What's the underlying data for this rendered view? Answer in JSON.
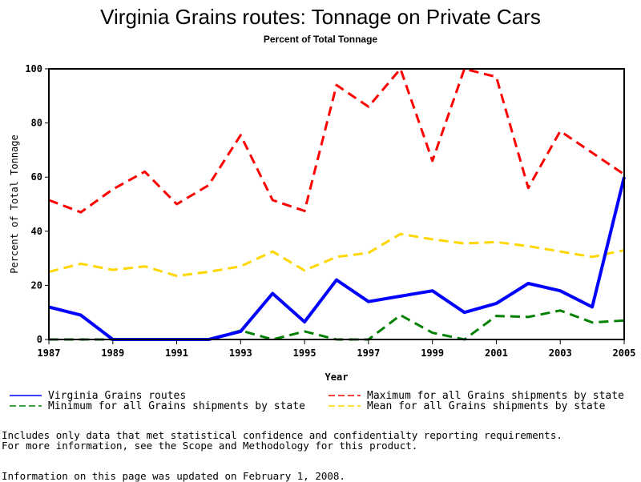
{
  "chart_data": {
    "type": "line",
    "title": "Virginia Grains routes: Tonnage on Private Cars",
    "subtitle": "Percent of Total Tonnage",
    "xlabel": "Year",
    "ylabel": "Percent of Total Tonnage",
    "xlim": [
      1987,
      2005
    ],
    "ylim": [
      0,
      100
    ],
    "x_ticks": [
      "1987",
      "1989",
      "1991",
      "1993",
      "1995",
      "1997",
      "1999",
      "2001",
      "2003",
      "2005"
    ],
    "y_ticks": [
      "0",
      "20",
      "40",
      "60",
      "80",
      "100"
    ],
    "grid": false,
    "legend_position": "bottom",
    "x": [
      1987,
      1988,
      1989,
      1990,
      1991,
      1992,
      1993,
      1994,
      1995,
      1996,
      1997,
      1998,
      1999,
      2000,
      2001,
      2002,
      2003,
      2004,
      2005
    ],
    "series": [
      {
        "name": "Virginia Grains routes",
        "color": "#0000ff",
        "style": "solid",
        "values": [
          12,
          9,
          0,
          0,
          0,
          0,
          3,
          17,
          6.5,
          22,
          14,
          16,
          18,
          10,
          13.3,
          20.7,
          18,
          12,
          60
        ]
      },
      {
        "name": "Maximum for all Grains shipments by state",
        "color": "#ff0000",
        "style": "dashed",
        "values": [
          51.5,
          47,
          55.5,
          62,
          50,
          57,
          75.5,
          51.5,
          47.5,
          94,
          86,
          100,
          66,
          100,
          97,
          56,
          77,
          69,
          61
        ]
      },
      {
        "name": "Minimum for all Grains shipments by state",
        "color": "#008000",
        "style": "dashed",
        "values": [
          0,
          0,
          0,
          0,
          0,
          0,
          3.3,
          0,
          3,
          0,
          0,
          9,
          2.5,
          0,
          8.7,
          8.3,
          10.7,
          6.3,
          7
        ]
      },
      {
        "name": "Mean for all Grains shipments by state",
        "color": "#ffd700",
        "style": "dashed",
        "values": [
          25,
          28,
          25.7,
          27,
          23.5,
          25,
          27,
          32.5,
          25.5,
          30.5,
          32,
          39,
          37,
          35.5,
          36,
          34.5,
          32.5,
          30.5,
          33
        ]
      }
    ]
  },
  "footer": {
    "note_line1": "Includes only data that met statistical confidence and confidentialty reporting requirements.",
    "note_line2": "For more information, see the Scope and Methodology for this product.",
    "updated": "Information on this page was updated on February 1, 2008."
  }
}
